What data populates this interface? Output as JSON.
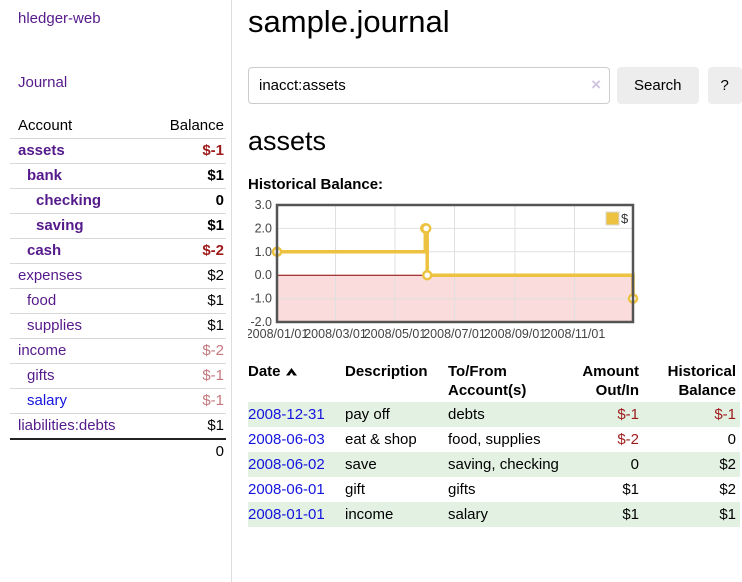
{
  "colors": {
    "purple": "#551a8b",
    "blue": "#1414dd",
    "negative_strong": "#9e1b1b",
    "negative_muted": "#c4777c",
    "row_alt_green": "#e3f1e3",
    "chart_line_gold": "#edc240",
    "chart_negative_fill": "#fbdcdc",
    "chart_zero_line": "#8b0000",
    "chart_grid": "#e0e0e0",
    "chart_border": "#545454"
  },
  "sidebar": {
    "app_title": "hledger-web",
    "journal_label": "Journal",
    "account_header": "Account",
    "balance_header": "Balance",
    "accounts": [
      {
        "name": "assets",
        "level": 0,
        "bold": true,
        "balance": "$-1",
        "balance_color": "negative_strong"
      },
      {
        "name": "bank",
        "level": 1,
        "bold": true,
        "balance": "$1"
      },
      {
        "name": "checking",
        "level": 2,
        "bold": true,
        "balance": "0"
      },
      {
        "name": "saving",
        "level": 2,
        "bold": true,
        "balance": "$1"
      },
      {
        "name": "cash",
        "level": 1,
        "bold": true,
        "balance": "$-2",
        "balance_color": "negative_strong"
      },
      {
        "name": "expenses",
        "level": 0,
        "bold": false,
        "balance": "$2"
      },
      {
        "name": "food",
        "level": 1,
        "bold": false,
        "balance": "$1"
      },
      {
        "name": "supplies",
        "level": 1,
        "bold": false,
        "balance": "$1"
      },
      {
        "name": "income",
        "level": 0,
        "bold": false,
        "balance": "$-2",
        "balance_color": "negative_muted"
      },
      {
        "name": "gifts",
        "level": 1,
        "bold": false,
        "balance": "$-1",
        "balance_color": "negative_muted"
      },
      {
        "name": "salary",
        "level": 1,
        "bold": false,
        "balance": "$-1",
        "balance_color": "negative_muted",
        "link_color": "blue"
      },
      {
        "name": "liabilities:debts",
        "level": 0,
        "bold": false,
        "balance": "$1"
      }
    ],
    "total": "0"
  },
  "main": {
    "title": "sample.journal",
    "search": {
      "value": "inacct:assets",
      "clear_icon": "×",
      "button_label": "Search",
      "help_label": "?"
    },
    "section_title": "assets",
    "chart_label": "Historical Balance:"
  },
  "chart_data": {
    "type": "line",
    "style": "steps",
    "title": "Historical Balance:",
    "series": [
      {
        "name": "$",
        "color": "#edc240",
        "points": [
          [
            "2008/01/01",
            1
          ],
          [
            "2008/06/01",
            2
          ],
          [
            "2008/06/02",
            2
          ],
          [
            "2008/06/03",
            0
          ],
          [
            "2008/12/31",
            -1
          ]
        ]
      }
    ],
    "x_ticks": [
      "2008/01/01",
      "2008/03/01",
      "2008/05/01",
      "2008/07/01",
      "2008/09/01",
      "2008/11/01"
    ],
    "y_ticks": [
      3.0,
      2.0,
      1.0,
      0.0,
      -1.0,
      -2.0
    ],
    "xlim": [
      "2008/01/01",
      "2008/12/31"
    ],
    "ylim": [
      -2,
      3
    ],
    "grid": true,
    "legend": {
      "label": "$",
      "position": "top-right"
    }
  },
  "register_table": {
    "headers": {
      "date": "Date",
      "description": "Description",
      "accounts": "To/From Account(s)",
      "amount": "Amount Out/In",
      "balance": "Historical Balance"
    },
    "rows": [
      {
        "date": "2008-12-31",
        "description": "pay off",
        "accounts": "debts",
        "amount": "$-1",
        "amount_color": "negative_strong",
        "balance": "$-1",
        "balance_color": "negative_strong",
        "alt": true
      },
      {
        "date": "2008-06-03",
        "description": "eat & shop",
        "accounts": "food, supplies",
        "amount": "$-2",
        "amount_color": "negative_strong",
        "balance": "0",
        "alt": false
      },
      {
        "date": "2008-06-02",
        "description": "save",
        "accounts": "saving, checking",
        "amount": "0",
        "balance": "$2",
        "alt": true
      },
      {
        "date": "2008-06-01",
        "description": "gift",
        "accounts": "gifts",
        "amount": "$1",
        "balance": "$2",
        "alt": false
      },
      {
        "date": "2008-01-01",
        "description": "income",
        "accounts": "salary",
        "amount": "$1",
        "balance": "$1",
        "alt": true
      }
    ]
  }
}
